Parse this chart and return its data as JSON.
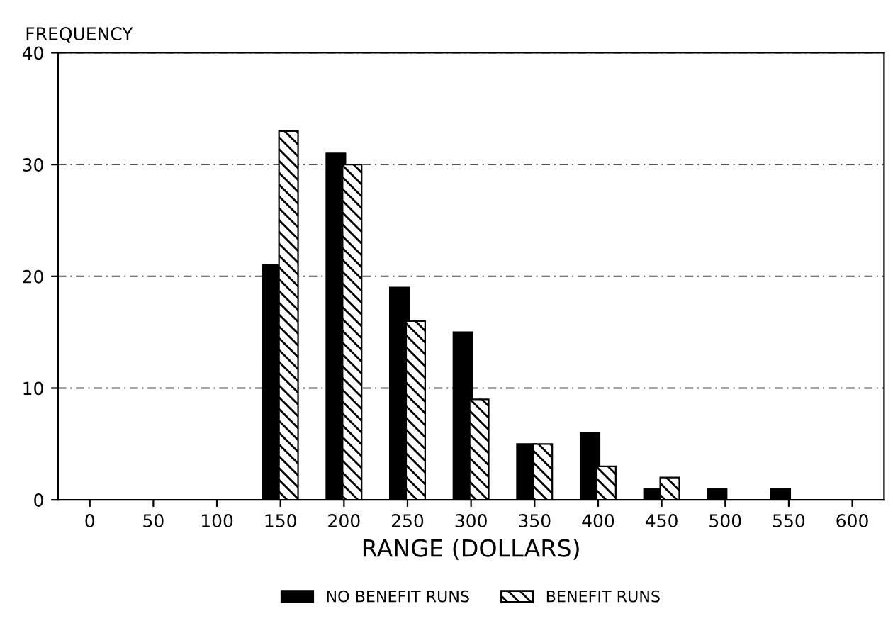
{
  "chart_data": {
    "type": "bar",
    "ylabel": "FREQUENCY",
    "xlabel": "RANGE (DOLLARS)",
    "categories": [
      "0",
      "50",
      "100",
      "150",
      "200",
      "250",
      "300",
      "350",
      "400",
      "450",
      "500",
      "550",
      "600"
    ],
    "series": [
      {
        "name": "NO BENEFIT RUNS",
        "color": "#000000",
        "values": [
          0,
          0,
          0,
          21,
          31,
          19,
          15,
          5,
          6,
          1,
          1,
          1,
          0
        ]
      },
      {
        "name": "BENEFIT RUNS",
        "color": "#000000",
        "values": [
          0,
          0,
          0,
          33,
          30,
          16,
          9,
          5,
          3,
          2,
          0,
          0,
          0
        ]
      }
    ],
    "ylim": [
      0,
      40
    ],
    "yticks": [
      0,
      10,
      20,
      30,
      40
    ],
    "grid": "y",
    "legend": "bottom"
  }
}
